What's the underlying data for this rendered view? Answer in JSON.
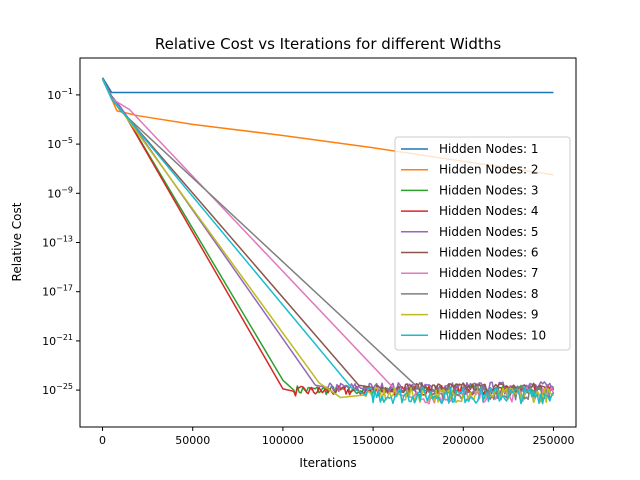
{
  "chart_data": {
    "type": "line",
    "title": "Relative Cost vs Iterations for different Widths",
    "xlabel": "Iterations",
    "ylabel": "Relative Cost",
    "xlim": [
      -12500,
      262500
    ],
    "ylim_exponent": [
      -28,
      2
    ],
    "yscale": "log",
    "x_ticks": [
      0,
      50000,
      100000,
      150000,
      200000,
      250000
    ],
    "x_tick_labels": [
      "0",
      "50000",
      "100000",
      "150000",
      "200000",
      "250000"
    ],
    "y_tick_exponents": [
      -1,
      -5,
      -9,
      -13,
      -17,
      -21,
      -25
    ],
    "y_tick_labels": [
      "10",
      "10",
      "10",
      "10",
      "10",
      "10",
      "10"
    ],
    "y_tick_sup": [
      "−1",
      "−5",
      "−9",
      "−13",
      "−17",
      "−21",
      "−25"
    ],
    "legend_position": "center-right",
    "series": [
      {
        "name": "Hidden Nodes: 1",
        "color": "#1f77b4",
        "noise": 0.0,
        "points": [
          [
            0,
            0.4
          ],
          [
            5000,
            -0.8
          ],
          [
            250000,
            -0.8
          ]
        ]
      },
      {
        "name": "Hidden Nodes: 2",
        "color": "#ff7f0e",
        "noise": 0.0,
        "points": [
          [
            0,
            0.3
          ],
          [
            8000,
            -2.3
          ],
          [
            20000,
            -2.7
          ],
          [
            50000,
            -3.4
          ],
          [
            100000,
            -4.3
          ],
          [
            150000,
            -5.3
          ],
          [
            200000,
            -6.4
          ],
          [
            250000,
            -7.5
          ]
        ]
      },
      {
        "name": "Hidden Nodes: 3",
        "color": "#2ca02c",
        "noise": 0.4,
        "points": [
          [
            0,
            0.3
          ],
          [
            5000,
            -1.1
          ],
          [
            10000,
            -2.0
          ],
          [
            100000,
            -24.2
          ],
          [
            106000,
            -25.0
          ],
          [
            250000,
            -25.0
          ]
        ]
      },
      {
        "name": "Hidden Nodes: 4",
        "color": "#d62728",
        "noise": 0.4,
        "points": [
          [
            0,
            0.3
          ],
          [
            5000,
            -1.1
          ],
          [
            10000,
            -2.0
          ],
          [
            100000,
            -24.9
          ],
          [
            106000,
            -25.1
          ],
          [
            250000,
            -25.0
          ]
        ]
      },
      {
        "name": "Hidden Nodes: 5",
        "color": "#9467bd",
        "noise": 0.4,
        "points": [
          [
            0,
            0.3
          ],
          [
            5000,
            -1.1
          ],
          [
            10000,
            -2.0
          ],
          [
            118000,
            -24.6
          ],
          [
            125000,
            -24.8
          ],
          [
            250000,
            -24.7
          ]
        ]
      },
      {
        "name": "Hidden Nodes: 6",
        "color": "#8c564b",
        "noise": 0.4,
        "points": [
          [
            0,
            0.3
          ],
          [
            5000,
            -1.3
          ],
          [
            10000,
            -2.2
          ],
          [
            142000,
            -24.6
          ],
          [
            150000,
            -24.8
          ],
          [
            250000,
            -24.8
          ]
        ]
      },
      {
        "name": "Hidden Nodes: 7",
        "color": "#e377c2",
        "noise": 0.6,
        "points": [
          [
            0,
            0.3
          ],
          [
            5000,
            -1.3
          ],
          [
            15000,
            -2.2
          ],
          [
            165000,
            -25.4
          ],
          [
            172000,
            -25.6
          ],
          [
            250000,
            -25.3
          ]
        ]
      },
      {
        "name": "Hidden Nodes: 8",
        "color": "#7f7f7f",
        "noise": 0.6,
        "points": [
          [
            0,
            0.3
          ],
          [
            5000,
            -1.3
          ],
          [
            10000,
            -2.3
          ],
          [
            175000,
            -24.8
          ],
          [
            182000,
            -25.2
          ],
          [
            250000,
            -25.2
          ]
        ]
      },
      {
        "name": "Hidden Nodes: 9",
        "color": "#bcbd22",
        "noise": 0.6,
        "points": [
          [
            0,
            0.3
          ],
          [
            5000,
            -1.3
          ],
          [
            10000,
            -2.2
          ],
          [
            120000,
            -24.4
          ],
          [
            132000,
            -25.6
          ],
          [
            145000,
            -25.4
          ],
          [
            250000,
            -25.4
          ]
        ]
      },
      {
        "name": "Hidden Nodes: 10",
        "color": "#17becf",
        "noise": 0.7,
        "points": [
          [
            0,
            0.3
          ],
          [
            5000,
            -1.3
          ],
          [
            10000,
            -2.2
          ],
          [
            138000,
            -24.8
          ],
          [
            146000,
            -25.4
          ],
          [
            250000,
            -25.4
          ]
        ]
      }
    ]
  }
}
